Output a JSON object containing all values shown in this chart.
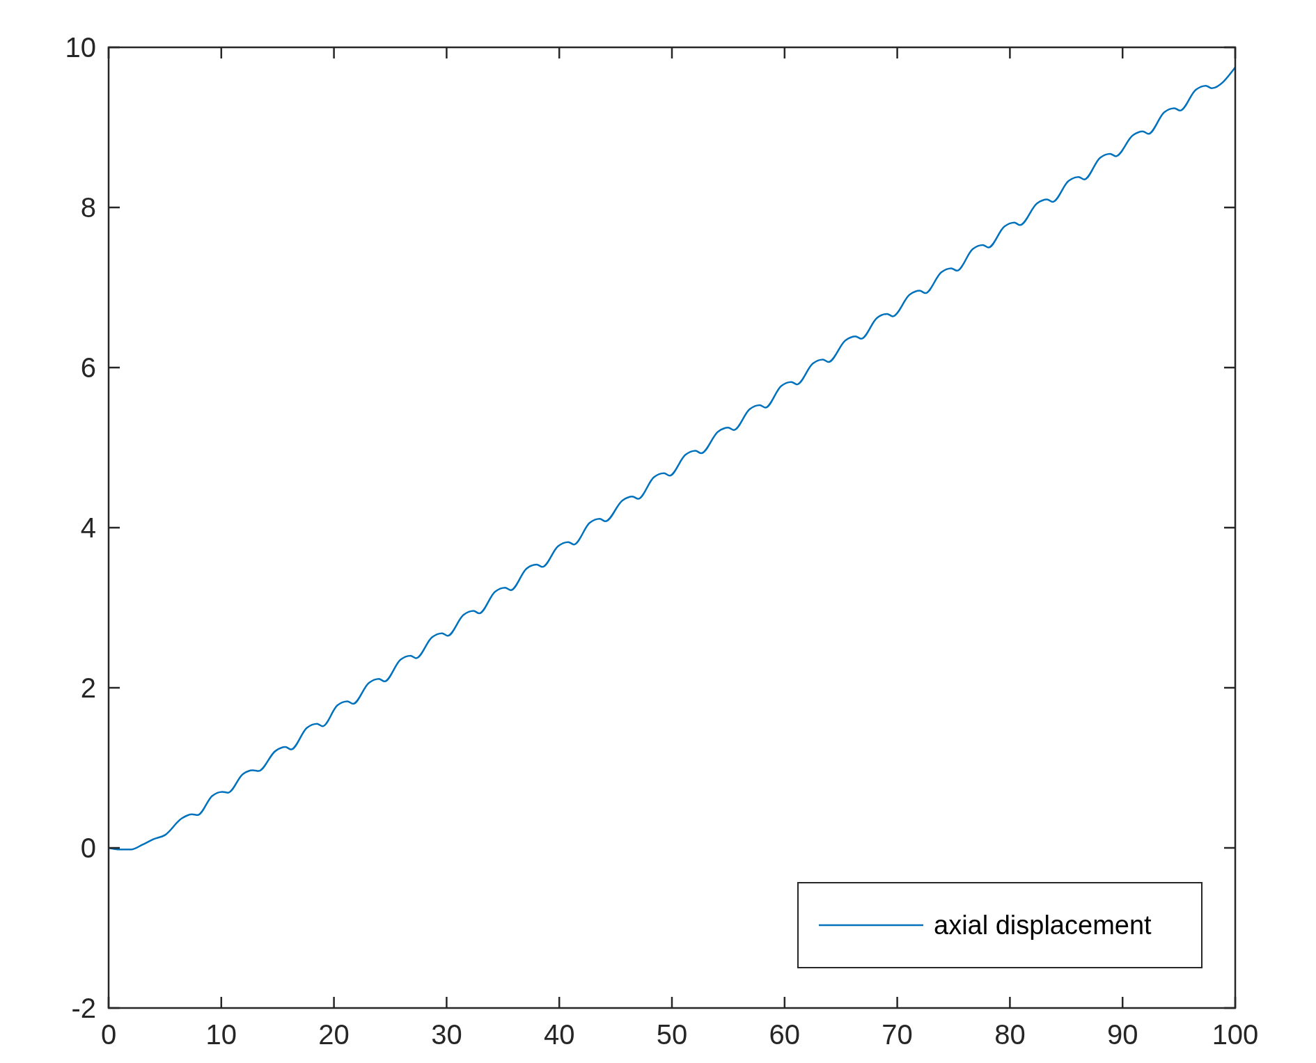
{
  "chart_data": {
    "type": "line",
    "xlim": [
      0,
      100
    ],
    "ylim": [
      -2,
      10
    ],
    "xticks": [
      0,
      10,
      20,
      30,
      40,
      50,
      60,
      70,
      80,
      90,
      100
    ],
    "yticks": [
      -2,
      0,
      2,
      4,
      6,
      8,
      10
    ],
    "grid": false,
    "legend": "bottom right",
    "line_style": "solid",
    "marker": "none",
    "series": [
      {
        "name": "axial displacement",
        "color": "#0072bd",
        "x": [
          0,
          1,
          2,
          3,
          4,
          5,
          6.5,
          7.4,
          7.9,
          9.2,
          10.1,
          10.6,
          11.9,
          12.8,
          13.3,
          14.8,
          15.7,
          16.2,
          17.6,
          18.5,
          19.0,
          20.3,
          21.2,
          21.7,
          23.1,
          24.0,
          24.5,
          25.9,
          26.8,
          27.3,
          28.7,
          29.6,
          30.1,
          31.5,
          32.4,
          32.9,
          34.3,
          35.2,
          35.7,
          37.1,
          38.0,
          38.5,
          39.9,
          40.8,
          41.3,
          42.7,
          43.6,
          44.1,
          45.6,
          46.5,
          47.0,
          48.4,
          49.3,
          49.8,
          51.2,
          52.1,
          52.6,
          54.1,
          55.0,
          55.5,
          56.9,
          57.8,
          58.3,
          59.7,
          60.6,
          61.1,
          62.5,
          63.4,
          63.9,
          65.4,
          66.3,
          66.8,
          68.2,
          69.1,
          69.6,
          71.1,
          72.0,
          72.5,
          73.9,
          74.8,
          75.3,
          76.7,
          77.6,
          78.1,
          79.5,
          80.4,
          80.9,
          82.4,
          83.3,
          83.8,
          85.2,
          86.1,
          86.6,
          88.0,
          88.9,
          89.4,
          90.9,
          91.8,
          92.3,
          93.7,
          94.6,
          95.1,
          96.5,
          97.4,
          97.9,
          100
        ],
        "values": [
          0,
          -0.02,
          -0.02,
          0.04,
          0.11,
          0.16,
          0.37,
          0.42,
          0.41,
          0.65,
          0.7,
          0.69,
          0.92,
          0.97,
          0.96,
          1.21,
          1.26,
          1.23,
          1.5,
          1.55,
          1.52,
          1.78,
          1.83,
          1.8,
          2.06,
          2.11,
          2.08,
          2.35,
          2.4,
          2.37,
          2.63,
          2.68,
          2.65,
          2.91,
          2.96,
          2.93,
          3.2,
          3.25,
          3.22,
          3.49,
          3.54,
          3.51,
          3.77,
          3.82,
          3.79,
          4.06,
          4.11,
          4.08,
          4.34,
          4.39,
          4.36,
          4.63,
          4.68,
          4.65,
          4.91,
          4.96,
          4.93,
          5.2,
          5.25,
          5.22,
          5.48,
          5.53,
          5.5,
          5.77,
          5.82,
          5.79,
          6.05,
          6.1,
          6.07,
          6.34,
          6.39,
          6.36,
          6.62,
          6.67,
          6.64,
          6.91,
          6.96,
          6.93,
          7.19,
          7.24,
          7.21,
          7.48,
          7.53,
          7.5,
          7.76,
          7.81,
          7.78,
          8.05,
          8.1,
          8.07,
          8.33,
          8.38,
          8.35,
          8.62,
          8.67,
          8.64,
          8.9,
          8.95,
          8.92,
          9.19,
          9.24,
          9.21,
          9.47,
          9.52,
          9.49,
          9.75
        ]
      }
    ]
  }
}
